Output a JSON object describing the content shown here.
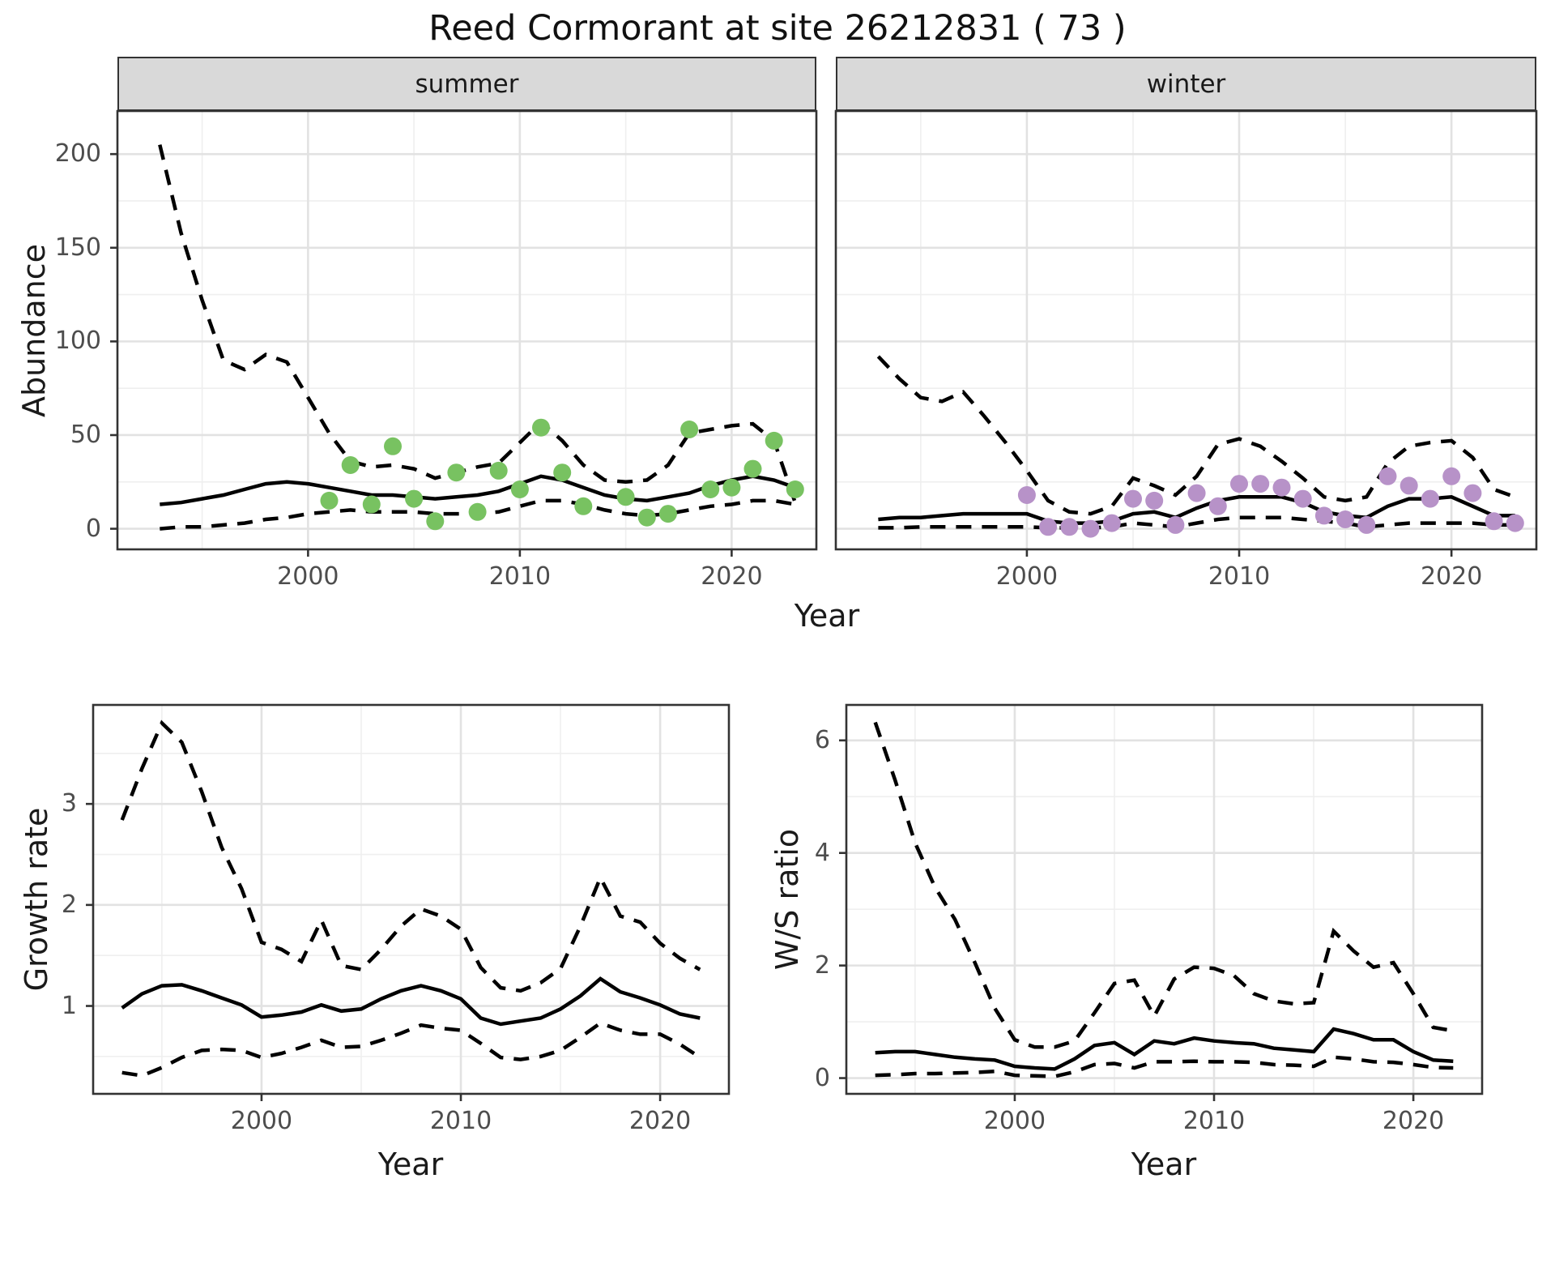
{
  "title": "Reed Cormorant at site 26212831 ( 73 )",
  "facets": {
    "summer": "summer",
    "winter": "winter"
  },
  "axis_titles": {
    "abundance": "Abundance",
    "year_top": "Year",
    "growth": "Growth rate",
    "ws": "W/S ratio",
    "year_bottom_left": "Year",
    "year_bottom_right": "Year"
  },
  "colors": {
    "summer_points": "#78c261",
    "winter_points": "#b792c8",
    "line": "#000000",
    "grid_major": "#e2e2e2",
    "grid_minor": "#efefef",
    "panel_border": "#333333",
    "strip_bg": "#d9d9d9",
    "tick_text": "#4d4d4d"
  },
  "chart_data": [
    {
      "id": "summer",
      "type": "line",
      "facet_label": "summer",
      "xlabel": "Year",
      "ylabel": "Abundance",
      "x_range": [
        1991,
        2024
      ],
      "y_range": [
        -11,
        223
      ],
      "x_ticks": {
        "major": [
          2000,
          2010,
          2020
        ],
        "minor": [
          1995,
          2005,
          2015
        ],
        "labels": [
          "2000",
          "2010",
          "2020"
        ]
      },
      "y_ticks": {
        "major": [
          0,
          50,
          100,
          150,
          200
        ],
        "minor": [
          25,
          75,
          125,
          175
        ],
        "labels": [
          "0",
          "50",
          "100",
          "150",
          "200"
        ]
      },
      "years": [
        1993,
        1994,
        1995,
        1996,
        1997,
        1998,
        1999,
        2000,
        2001,
        2002,
        2003,
        2004,
        2005,
        2006,
        2007,
        2008,
        2009,
        2010,
        2011,
        2012,
        2013,
        2014,
        2015,
        2016,
        2017,
        2018,
        2019,
        2020,
        2021,
        2022,
        2023
      ],
      "series": [
        {
          "name": "upper_ci",
          "style": "dashed",
          "values": [
            205,
            158,
            122,
            90,
            85,
            93,
            89,
            70,
            51,
            36,
            33,
            34,
            32,
            27,
            30,
            33,
            35,
            46,
            57,
            47,
            34,
            26,
            25,
            26,
            34,
            51,
            53,
            55,
            56,
            47,
            14
          ]
        },
        {
          "name": "mean",
          "style": "solid",
          "values": [
            13,
            14,
            16,
            18,
            21,
            24,
            25,
            24,
            22,
            20,
            18,
            18,
            17,
            16,
            17,
            18,
            20,
            24,
            28,
            26,
            22,
            18,
            16,
            15,
            17,
            19,
            23,
            26,
            28,
            26,
            22
          ]
        },
        {
          "name": "lower_ci",
          "style": "dashed",
          "values": [
            0,
            1,
            1,
            2,
            3,
            5,
            6,
            8,
            9,
            10,
            9,
            9,
            9,
            8,
            8,
            8,
            9,
            12,
            15,
            15,
            13,
            10,
            8,
            7,
            8,
            10,
            12,
            13,
            15,
            15,
            13
          ]
        }
      ],
      "points": {
        "color_key": "summer_points",
        "years": [
          2001,
          2002,
          2003,
          2004,
          2005,
          2006,
          2007,
          2008,
          2009,
          2010,
          2011,
          2012,
          2013,
          2015,
          2016,
          2017,
          2018,
          2019,
          2020,
          2021,
          2022,
          2023
        ],
        "values": [
          15,
          34,
          13,
          44,
          16,
          4,
          30,
          9,
          31,
          21,
          54,
          30,
          12,
          17,
          6,
          8,
          53,
          21,
          22,
          32,
          47,
          21
        ]
      }
    },
    {
      "id": "winter",
      "type": "line",
      "facet_label": "winter",
      "xlabel": "Year",
      "ylabel": "Abundance",
      "x_range": [
        1991,
        2024
      ],
      "y_range": [
        -11,
        223
      ],
      "x_ticks": {
        "major": [
          2000,
          2010,
          2020
        ],
        "minor": [
          1995,
          2005,
          2015
        ],
        "labels": [
          "2000",
          "2010",
          "2020"
        ]
      },
      "y_ticks": {
        "major": [
          0,
          50,
          100,
          150,
          200
        ],
        "minor": [
          25,
          75,
          125,
          175
        ],
        "labels": []
      },
      "years": [
        1993,
        1994,
        1995,
        1996,
        1997,
        1998,
        1999,
        2000,
        2001,
        2002,
        2003,
        2004,
        2005,
        2006,
        2007,
        2008,
        2009,
        2010,
        2011,
        2012,
        2013,
        2014,
        2015,
        2016,
        2017,
        2018,
        2019,
        2020,
        2021,
        2022,
        2023
      ],
      "series": [
        {
          "name": "upper_ci",
          "style": "dashed",
          "values": [
            92,
            80,
            70,
            68,
            73,
            60,
            46,
            31,
            15,
            9,
            8,
            12,
            27,
            23,
            18,
            28,
            45,
            48,
            44,
            36,
            27,
            17,
            15,
            17,
            35,
            44,
            46,
            47,
            38,
            21,
            17
          ]
        },
        {
          "name": "mean",
          "style": "solid",
          "values": [
            5,
            6,
            6,
            7,
            8,
            8,
            8,
            8,
            4,
            3,
            3,
            4,
            8,
            9,
            6,
            11,
            15,
            17,
            17,
            17,
            14,
            9,
            7,
            6,
            12,
            16,
            16,
            17,
            12,
            7,
            7
          ]
        },
        {
          "name": "lower_ci",
          "style": "dashed",
          "values": [
            0.5,
            0.5,
            1,
            1,
            1,
            1,
            1,
            1,
            0.5,
            0.5,
            0.5,
            1,
            3,
            2,
            1,
            3,
            5,
            6,
            6,
            6,
            5,
            4,
            3,
            1,
            2,
            3,
            3,
            3,
            3,
            2,
            2
          ]
        }
      ],
      "points": {
        "color_key": "winter_points",
        "years": [
          2000,
          2001,
          2002,
          2003,
          2004,
          2005,
          2006,
          2007,
          2008,
          2009,
          2010,
          2011,
          2012,
          2013,
          2014,
          2015,
          2016,
          2017,
          2018,
          2019,
          2020,
          2021,
          2022,
          2023
        ],
        "values": [
          18,
          1,
          1,
          0,
          3,
          16,
          15,
          2,
          19,
          12,
          24,
          24,
          22,
          16,
          7,
          5,
          2,
          28,
          23,
          16,
          28,
          19,
          4,
          3
        ]
      }
    },
    {
      "id": "growth",
      "type": "line",
      "facet_label": "",
      "xlabel": "Year",
      "ylabel": "Growth rate",
      "x_range": [
        1991.55,
        2023.45
      ],
      "y_range": [
        0.13,
        3.98
      ],
      "x_ticks": {
        "major": [
          2000,
          2010,
          2020
        ],
        "minor": [
          1995,
          2005,
          2015
        ],
        "labels": [
          "2000",
          "2010",
          "2020"
        ]
      },
      "y_ticks": {
        "major": [
          1,
          2,
          3
        ],
        "minor": [
          0.5,
          1.5,
          2.5,
          3.5
        ],
        "labels": [
          "1",
          "2",
          "3"
        ]
      },
      "years": [
        1993,
        1994,
        1995,
        1996,
        1997,
        1998,
        1999,
        2000,
        2001,
        2002,
        2003,
        2004,
        2005,
        2006,
        2007,
        2008,
        2009,
        2010,
        2011,
        2012,
        2013,
        2014,
        2015,
        2016,
        2017,
        2018,
        2019,
        2020,
        2021,
        2022
      ],
      "series": [
        {
          "name": "upper_ci",
          "style": "dashed",
          "values": [
            2.84,
            3.35,
            3.8,
            3.61,
            3.12,
            2.57,
            2.16,
            1.63,
            1.56,
            1.44,
            1.85,
            1.4,
            1.36,
            1.56,
            1.79,
            1.96,
            1.89,
            1.76,
            1.38,
            1.18,
            1.15,
            1.23,
            1.37,
            1.79,
            2.27,
            1.89,
            1.83,
            1.62,
            1.47,
            1.36
          ]
        },
        {
          "name": "mean",
          "style": "solid",
          "values": [
            0.98,
            1.12,
            1.2,
            1.21,
            1.15,
            1.08,
            1.01,
            0.89,
            0.91,
            0.94,
            1.01,
            0.95,
            0.97,
            1.07,
            1.15,
            1.2,
            1.15,
            1.07,
            0.88,
            0.82,
            0.85,
            0.88,
            0.97,
            1.1,
            1.27,
            1.14,
            1.08,
            1.01,
            0.92,
            0.88
          ]
        },
        {
          "name": "lower_ci",
          "style": "dashed",
          "values": [
            0.34,
            0.31,
            0.39,
            0.49,
            0.56,
            0.57,
            0.56,
            0.49,
            0.53,
            0.59,
            0.66,
            0.59,
            0.6,
            0.66,
            0.73,
            0.81,
            0.78,
            0.76,
            0.63,
            0.49,
            0.47,
            0.5,
            0.56,
            0.69,
            0.83,
            0.76,
            0.72,
            0.72,
            0.62,
            0.49
          ]
        }
      ],
      "points": {
        "color_key": "",
        "years": [],
        "values": []
      }
    },
    {
      "id": "ws",
      "type": "line",
      "facet_label": "",
      "xlabel": "Year",
      "ylabel": "W/S ratio",
      "x_range": [
        1991.55,
        2023.45
      ],
      "y_range": [
        -0.28,
        6.63
      ],
      "x_ticks": {
        "major": [
          2000,
          2010,
          2020
        ],
        "minor": [
          1995,
          2005,
          2015
        ],
        "labels": [
          "2000",
          "2010",
          "2020"
        ]
      },
      "y_ticks": {
        "major": [
          0,
          2,
          4,
          6
        ],
        "minor": [
          1,
          3,
          5
        ],
        "labels": [
          "0",
          "2",
          "4",
          "6"
        ]
      },
      "years": [
        1993,
        1994,
        1995,
        1996,
        1997,
        1998,
        1999,
        2000,
        2001,
        2002,
        2003,
        2004,
        2005,
        2006,
        2007,
        2008,
        2009,
        2010,
        2011,
        2012,
        2013,
        2014,
        2015,
        2016,
        2017,
        2018,
        2019,
        2020,
        2021,
        2022
      ],
      "series": [
        {
          "name": "upper_ci",
          "style": "dashed",
          "values": [
            6.32,
            5.29,
            4.18,
            3.39,
            2.82,
            2.05,
            1.24,
            0.68,
            0.55,
            0.55,
            0.66,
            1.16,
            1.68,
            1.74,
            1.1,
            1.76,
            1.97,
            1.95,
            1.82,
            1.5,
            1.37,
            1.32,
            1.34,
            2.61,
            2.26,
            1.97,
            2.05,
            1.5,
            0.9,
            0.84
          ]
        },
        {
          "name": "mean",
          "style": "solid",
          "values": [
            0.45,
            0.47,
            0.47,
            0.42,
            0.37,
            0.34,
            0.32,
            0.21,
            0.18,
            0.16,
            0.34,
            0.58,
            0.63,
            0.42,
            0.66,
            0.61,
            0.71,
            0.66,
            0.63,
            0.61,
            0.53,
            0.5,
            0.47,
            0.87,
            0.79,
            0.68,
            0.68,
            0.47,
            0.32,
            0.3
          ]
        },
        {
          "name": "lower_ci",
          "style": "dashed",
          "values": [
            0.05,
            0.06,
            0.08,
            0.08,
            0.09,
            0.1,
            0.12,
            0.05,
            0.04,
            0.03,
            0.11,
            0.24,
            0.26,
            0.18,
            0.29,
            0.29,
            0.3,
            0.29,
            0.29,
            0.28,
            0.24,
            0.23,
            0.21,
            0.37,
            0.34,
            0.29,
            0.28,
            0.24,
            0.19,
            0.18
          ]
        }
      ],
      "points": {
        "color_key": "",
        "years": [],
        "values": []
      }
    }
  ]
}
